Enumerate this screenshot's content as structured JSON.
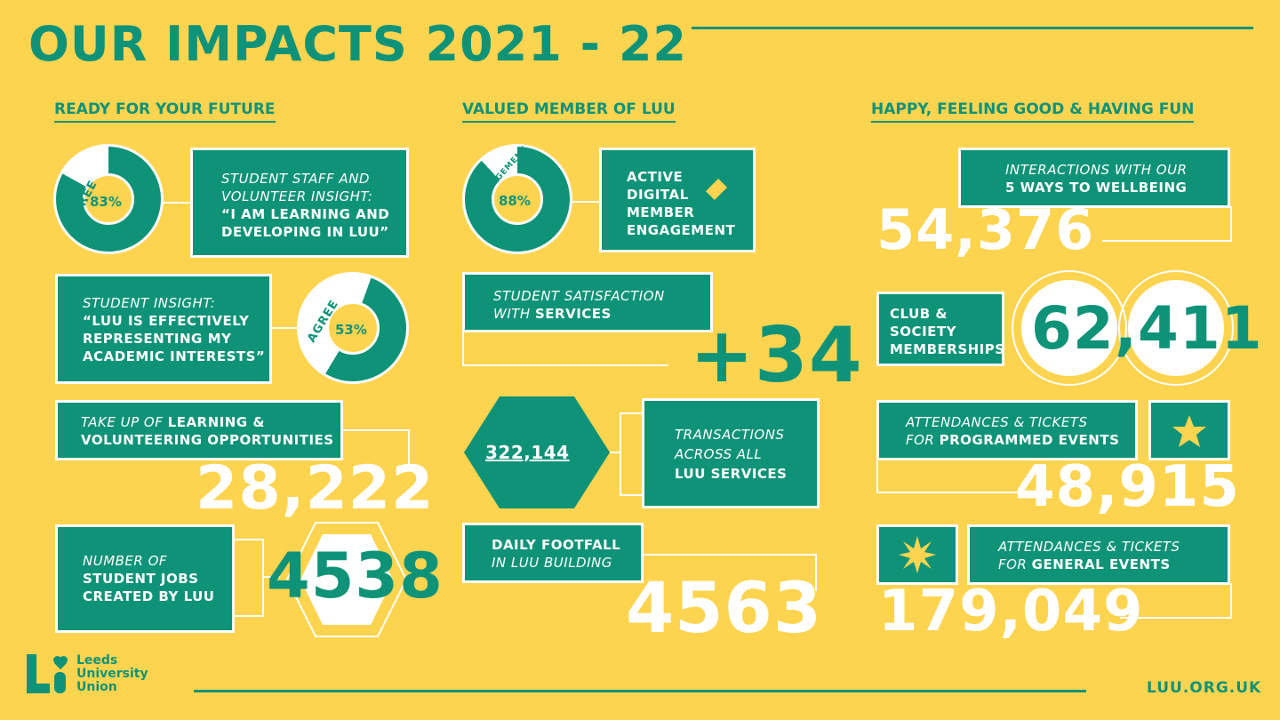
{
  "title": "OUR IMPACTS 2021 - 22",
  "sections": {
    "left": "READY FOR YOUR FUTURE",
    "middle": "VALUED MEMBER OF LUU",
    "right": "HAPPY, FEELING GOOD & HAVING FUN"
  },
  "left": {
    "donut1": {
      "label": "AGREE",
      "value": "83%",
      "fraction": 0.83
    },
    "box1": {
      "line1": "STUDENT STAFF AND",
      "line2": "VOLUNTEER INSIGHT:",
      "line3": "“I AM LEARNING AND",
      "line4": "DEVELOPING IN LUU”"
    },
    "box2": {
      "line1": "STUDENT INSIGHT:",
      "line2": "“LUU IS EFFECTIVELY",
      "line3": "REPRESENTING MY",
      "line4": "ACADEMIC INTERESTS”"
    },
    "donut2": {
      "label": "AGREE",
      "value": "53%",
      "fraction": 0.53
    },
    "box3": {
      "italic": "TAKE UP OF",
      "bold1": "LEARNING &",
      "bold2": "VOLUNTEERING OPPORTUNITIES"
    },
    "stat3": "28,222",
    "box4": {
      "line1": "NUMBER OF",
      "line2": "STUDENT JOBS",
      "line3": "CREATED BY LUU"
    },
    "stat4": "4538"
  },
  "middle": {
    "donut": {
      "label": "ENGAGEMENT",
      "value": "88%",
      "fraction": 0.88
    },
    "box1": {
      "line1": "ACTIVE",
      "line2": "DIGITAL",
      "line3": "MEMBER",
      "line4": "ENGAGEMENT"
    },
    "box2": {
      "line1": "STUDENT SATISFACTION",
      "italic2": "WITH",
      "bold2": "SERVICES"
    },
    "stat2": "+34",
    "hex_value": "322,144",
    "box3": {
      "line1": "TRANSACTIONS",
      "line2": "ACROSS ALL",
      "line3": "LUU SERVICES"
    },
    "box4": {
      "line1": "DAILY FOOTFALL",
      "line2": "IN LUU BUILDING"
    },
    "stat4": "4563"
  },
  "right": {
    "box1": {
      "line1": "INTERACTIONS WITH OUR",
      "line2": "5 WAYS TO WELLBEING"
    },
    "stat1": "54,376",
    "box2": {
      "line1": "CLUB &",
      "line2": "SOCIETY",
      "line3": "MEMBERSHIPS"
    },
    "stat2": "62,411",
    "box3": {
      "line1": "ATTENDANCES & TICKETS",
      "italic2": "FOR",
      "bold2": "PROGRAMMED EVENTS"
    },
    "stat3": "48,915",
    "box4": {
      "line1": "ATTENDANCES & TICKETS",
      "italic2": "FOR",
      "bold2": "GENERAL EVENTS"
    },
    "stat4": "179,049"
  },
  "footer": {
    "logo_line1": "Leeds",
    "logo_line2": "University",
    "logo_line3": "Union",
    "url": "LUU.ORG.UK"
  },
  "colors": {
    "background": "#fdd44f",
    "accent": "#0f9378",
    "white": "#ffffff"
  }
}
